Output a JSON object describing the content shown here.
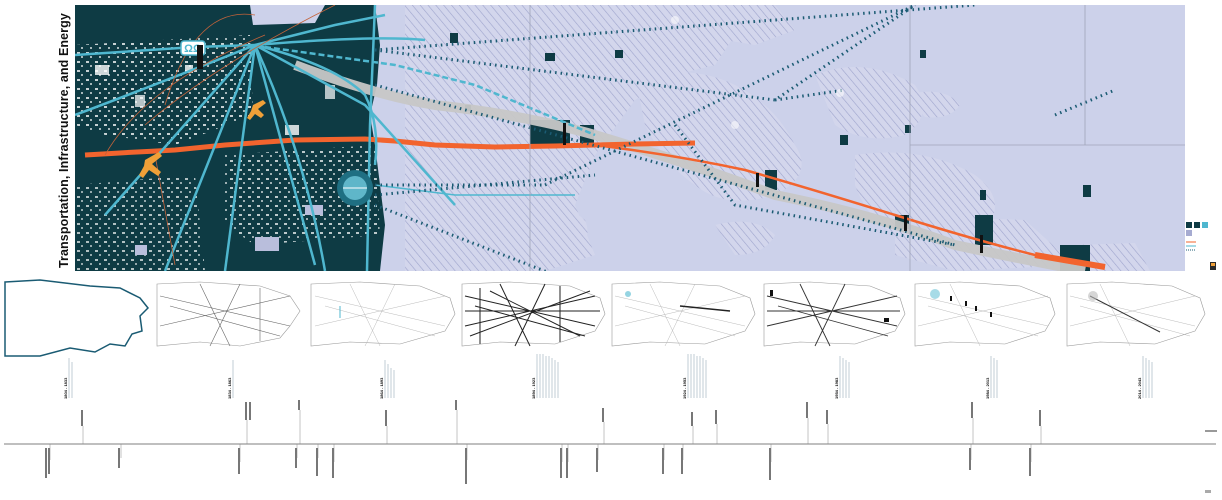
{
  "title": "Transportation, Infrastructure, and Energy",
  "colors": {
    "urban": "#0e3b44",
    "water": "#cfd3ea",
    "water_hatch": "#9aa1cc",
    "highway": "#f2642e",
    "rail": "#4fb7cf",
    "corridor": "#c9c9c9",
    "dotted": "#1b5b73"
  },
  "icons": [
    "airplane-icon",
    "airport-icon"
  ],
  "eras": [
    {
      "label": "1804 - 1833"
    },
    {
      "label": "1834 - 1863"
    },
    {
      "label": "1864 - 1893"
    },
    {
      "label": "1894 - 1923"
    },
    {
      "label": "1924 - 1953"
    },
    {
      "label": "1954 - 1983"
    },
    {
      "label": "1984 - 2013"
    },
    {
      "label": "2014 - 2043"
    }
  ]
}
